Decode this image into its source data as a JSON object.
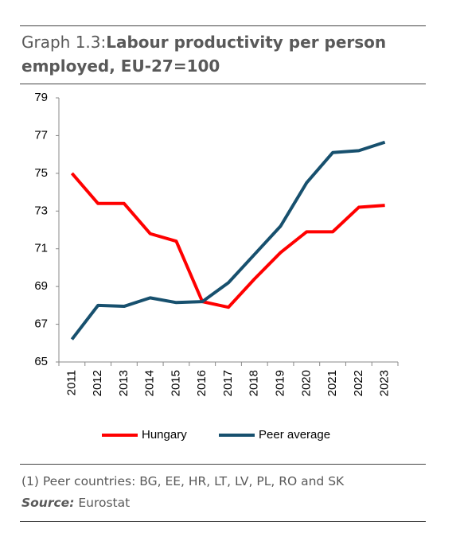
{
  "chart_data": {
    "type": "line",
    "title_prefix": "Graph 1.3:",
    "title": "Labour productivity per person employed, EU-27=100",
    "categories": [
      "2011",
      "2012",
      "2013",
      "2014",
      "2015",
      "2016",
      "2017",
      "2018",
      "2019",
      "2020",
      "2021",
      "2022",
      "2023"
    ],
    "series": [
      {
        "name": "Hungary",
        "color": "#ff0000",
        "values": [
          75.0,
          73.4,
          73.4,
          71.8,
          71.4,
          68.2,
          67.9,
          69.4,
          70.8,
          71.9,
          71.9,
          73.2,
          73.3
        ]
      },
      {
        "name": "Peer average",
        "color": "#17506e",
        "values": [
          66.2,
          68.0,
          67.95,
          68.4,
          68.15,
          68.2,
          69.2,
          70.7,
          72.2,
          74.5,
          76.1,
          76.2,
          76.65
        ]
      }
    ],
    "ylim": [
      65,
      79
    ],
    "yticks": [
      65,
      67,
      69,
      71,
      73,
      75,
      77,
      79
    ],
    "grid": false,
    "legend": "bottom",
    "note": "(1) Peer countries: BG, EE, HR, LT, LV, PL, RO and SK",
    "source_label": "Source:",
    "source": "Eurostat"
  }
}
